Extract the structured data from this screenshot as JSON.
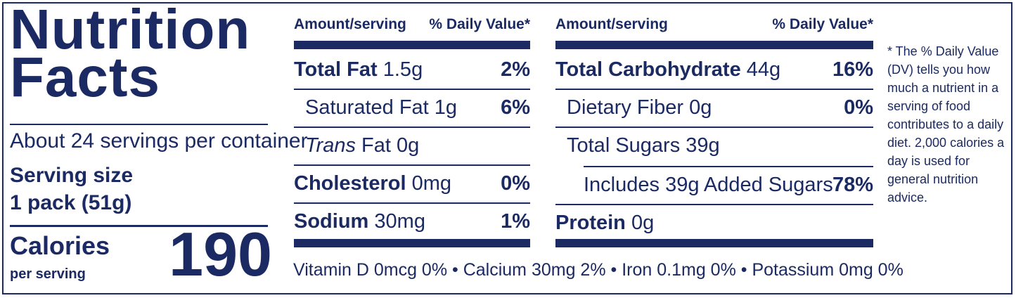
{
  "title": {
    "line1": "Nutrition",
    "line2": "Facts"
  },
  "servings": {
    "per_container": "About 24 servings per container",
    "size_label": "Serving size",
    "size_value": "1 pack (51g)"
  },
  "calories": {
    "label": "Calories",
    "per": "per serving",
    "value": "190"
  },
  "headers": {
    "left_amount": "Amount/serving",
    "left_dv": "% Daily Value*",
    "right_amount": "Amount/serving",
    "right_dv": "% Daily Value*"
  },
  "left_rows": [
    {
      "name": "Total Fat",
      "amount": "1.5g",
      "pct": "2%"
    },
    {
      "name": "Saturated Fat",
      "amount": "1g",
      "pct": "6%"
    },
    {
      "name": "Trans",
      "suffix": "Fat 0g",
      "pct": ""
    },
    {
      "name": "Cholesterol",
      "amount": "0mg",
      "pct": "0%"
    },
    {
      "name": "Sodium",
      "amount": "30mg",
      "pct": "1%"
    }
  ],
  "right_rows": [
    {
      "name": "Total Carbohydrate",
      "amount": "44g",
      "pct": "16%"
    },
    {
      "name": "Dietary Fiber",
      "amount": "0g",
      "pct": "0%"
    },
    {
      "name": "Total Sugars",
      "amount": "39g",
      "pct": ""
    },
    {
      "name": "Includes 39g Added Sugars",
      "amount": "",
      "pct": "78%"
    },
    {
      "name": "Protein",
      "amount": "0g",
      "pct": ""
    }
  ],
  "vitamins": "Vitamin D 0mcg 0% • Calcium 30mg 2% • Iron 0.1mg 0% • Potassium 0mg 0%",
  "footnote": "* The % Daily Value (DV) tells you how much a nutrient in a serving of food contributes to a daily diet. 2,000 calories a day is used for general nutrition advice."
}
